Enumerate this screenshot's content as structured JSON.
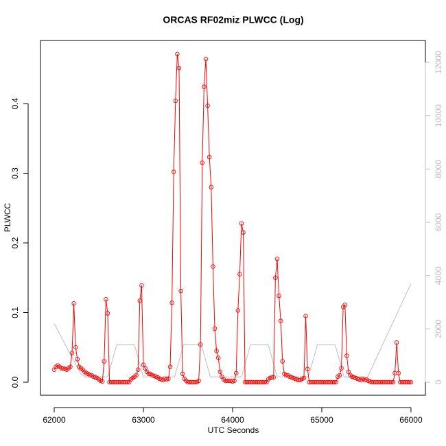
{
  "chart_data": {
    "type": "line",
    "title": "ORCAS RF02miz PLWCC (Log)",
    "xlabel": "UTC Seconds",
    "ylabel": "PLWCC",
    "xlim": [
      61846,
      66162
    ],
    "ylim": [
      -0.0187,
      0.4906
    ],
    "y2lim": [
      -489,
      12825
    ],
    "xticks": [
      62000,
      63000,
      64000,
      65000,
      66000
    ],
    "yticks": [
      {
        "value": 0,
        "label": "0.0"
      },
      0.1,
      0.2,
      0.3,
      0.4
    ],
    "y2ticks": [
      0,
      2000,
      4000,
      6000,
      8000,
      10000,
      12000
    ],
    "y2color": "#bebebe",
    "series": [
      {
        "color": "#ff0000",
        "markers": true,
        "x": [
          62000,
          62020,
          62040,
          62060,
          62080,
          62100,
          62120,
          62140,
          62160,
          62180,
          62200,
          62220,
          62240,
          62260,
          62280,
          62300,
          62320,
          62340,
          62360,
          62380,
          62400,
          62420,
          62440,
          62460,
          62480,
          62500,
          62520,
          62540,
          62560,
          62580,
          62600,
          62620,
          62640,
          62660,
          62680,
          62700,
          62720,
          62740,
          62760,
          62780,
          62800,
          62820,
          62840,
          62860,
          62880,
          62900,
          62920,
          62940,
          62960,
          62980,
          63000,
          63020,
          63040,
          63060,
          63080,
          63100,
          63120,
          63140,
          63160,
          63180,
          63200,
          63220,
          63240,
          63260,
          63280,
          63300,
          63320,
          63340,
          63360,
          63380,
          63400,
          63420,
          63440,
          63460,
          63480,
          63500,
          63520,
          63540,
          63560,
          63580,
          63600,
          63620,
          63640,
          63660,
          63680,
          63700,
          63720,
          63740,
          63760,
          63780,
          63800,
          63820,
          63840,
          63860,
          63880,
          63900,
          63920,
          63940,
          63960,
          63980,
          64000,
          64020,
          64040,
          64060,
          64080,
          64100,
          64120,
          64140,
          64160,
          64180,
          64200,
          64220,
          64240,
          64260,
          64280,
          64300,
          64320,
          64340,
          64360,
          64380,
          64400,
          64420,
          64440,
          64460,
          64480,
          64500,
          64520,
          64540,
          64560,
          64580,
          64600,
          64620,
          64640,
          64660,
          64680,
          64700,
          64720,
          64740,
          64760,
          64780,
          64800,
          64820,
          64840,
          64860,
          64880,
          64900,
          64920,
          64940,
          64960,
          64980,
          65000,
          65020,
          65040,
          65060,
          65080,
          65100,
          65120,
          65140,
          65160,
          65180,
          65200,
          65220,
          65240,
          65260,
          65280,
          65300,
          65320,
          65340,
          65360,
          65380,
          65400,
          65420,
          65440,
          65460,
          65480,
          65500,
          65520,
          65540,
          65560,
          65580,
          65600,
          65620,
          65640,
          65660,
          65680,
          65700,
          65720,
          65740,
          65760,
          65780,
          65800,
          65820,
          65840,
          65860,
          65880,
          65900,
          65920,
          65940,
          65960,
          65980,
          66000
        ],
        "values": [
          0.018,
          0.022,
          0.024,
          0.022,
          0.02,
          0.02,
          0.019,
          0.018,
          0.02,
          0.022,
          0.042,
          0.113,
          0.05,
          0.033,
          0.022,
          0.02,
          0.018,
          0.015,
          0.013,
          0.012,
          0.01,
          0.01,
          0.008,
          0.007,
          0.006,
          0.004,
          0.002,
          0.001,
          0.03,
          0.119,
          0.099,
          0,
          0,
          0,
          0,
          0,
          0,
          0,
          0,
          0,
          0,
          0,
          0,
          0.004,
          0.006,
          0.008,
          0.01,
          0.018,
          0.117,
          0.139,
          0.025,
          0.02,
          0.015,
          0.012,
          0.012,
          0.01,
          0.009,
          0.008,
          0.007,
          0.005,
          0.004,
          0.003,
          0.005,
          0.004,
          0.005,
          0.022,
          0.114,
          0.302,
          0.404,
          0.471,
          0.451,
          0.131,
          0.012,
          0.005,
          0.002,
          0,
          0,
          0,
          0,
          0,
          0,
          0.002,
          0.054,
          0.315,
          0.424,
          0.464,
          0.397,
          0.323,
          0.28,
          0.166,
          0.077,
          0.045,
          0.035,
          0.015,
          0.008,
          0.004,
          0.002,
          0.002,
          0.002,
          0.002,
          0.001,
          0.002,
          0.013,
          0.103,
          0.155,
          0.228,
          0.215,
          0,
          0,
          0,
          0,
          0,
          0,
          0,
          0,
          0,
          0,
          0,
          0,
          0,
          0.004,
          0.006,
          0.007,
          0.007,
          0.15,
          0.177,
          0.124,
          0.088,
          0.03,
          0.012,
          0.01,
          0.01,
          0.008,
          0.007,
          0.006,
          0.005,
          0.004,
          0.003,
          0.003,
          0.005,
          0.006,
          0.095,
          0.019,
          0,
          0,
          0,
          0,
          0,
          0,
          0,
          0,
          0,
          0,
          0,
          0,
          0,
          0,
          0,
          0,
          0.008,
          0.01,
          0.02,
          0.108,
          0.111,
          0.038,
          0.015,
          0.01,
          0.008,
          0.007,
          0.006,
          0.005,
          0.004,
          0.003,
          0.005,
          0.003,
          0.004,
          0.002,
          0.001,
          0,
          0,
          0,
          0,
          0,
          0,
          0,
          0,
          0,
          0,
          0,
          0,
          0,
          0.013,
          0.057,
          0.013,
          0,
          0,
          0,
          0,
          0,
          0,
          0
        ]
      },
      {
        "color": "#bebebe",
        "axis": "y2",
        "markers": false,
        "x": [
          62000,
          62300,
          62350,
          62600,
          62700,
          62900,
          63000,
          63350,
          63450,
          63650,
          63750,
          64100,
          64200,
          64400,
          64500,
          64850,
          64950,
          65150,
          65250,
          65450,
          65500,
          66000
        ],
        "values": [
          2200,
          300,
          200,
          200,
          1400,
          1400,
          200,
          200,
          1400,
          1400,
          200,
          200,
          1400,
          1400,
          200,
          200,
          1400,
          1400,
          200,
          200,
          100,
          3700
        ]
      }
    ]
  }
}
